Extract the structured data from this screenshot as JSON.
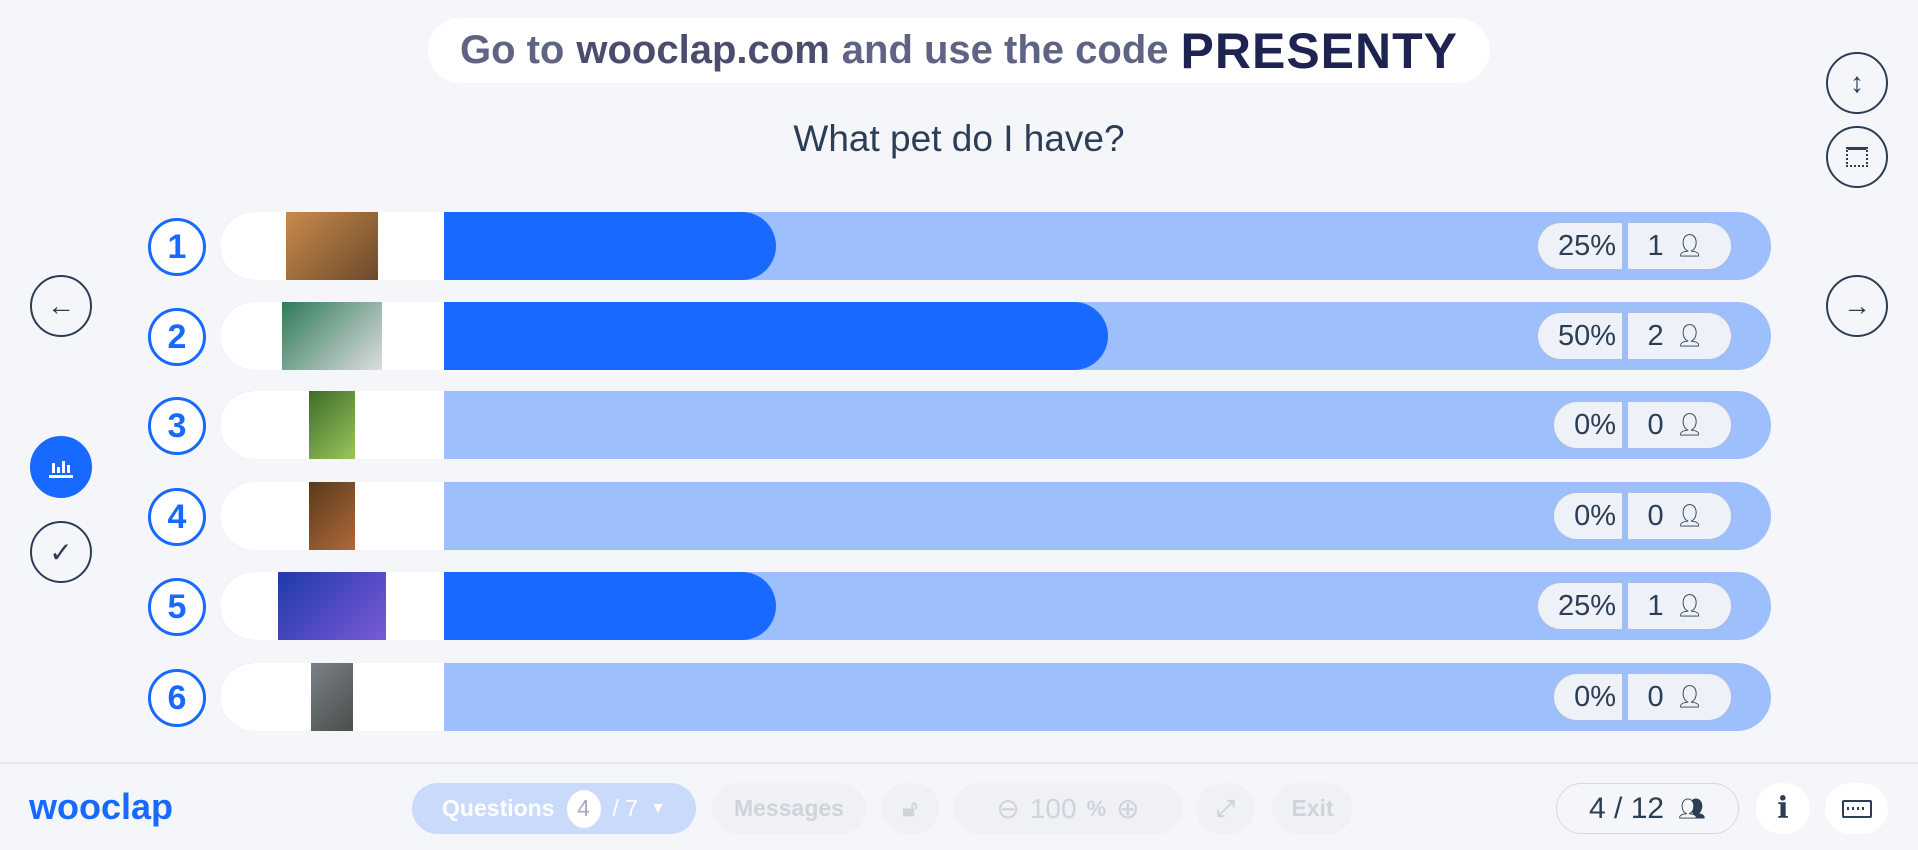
{
  "banner": {
    "prefix": "Go to",
    "site": "wooclap.com",
    "middle": "and use the code",
    "code": "PRESENTY"
  },
  "question": "What pet do I have?",
  "colors": {
    "accent": "#1769ff",
    "track": "#9dbffc",
    "text": "#2b3e55"
  },
  "answers": [
    {
      "number": "1",
      "image": "beagle dog",
      "percent": "25%",
      "value": 25,
      "count": "1"
    },
    {
      "number": "2",
      "image": "cat",
      "percent": "50%",
      "value": 50,
      "count": "2"
    },
    {
      "number": "3",
      "image": "frog",
      "percent": "0%",
      "value": 0,
      "count": "0"
    },
    {
      "number": "4",
      "image": "horse",
      "percent": "0%",
      "value": 0,
      "count": "0"
    },
    {
      "number": "5",
      "image": "fish",
      "percent": "25%",
      "value": 25,
      "count": "1"
    },
    {
      "number": "6",
      "image": "dinosaur",
      "percent": "0%",
      "value": 0,
      "count": "0"
    }
  ],
  "footer": {
    "logo": "wooclap",
    "questions_label": "Questions",
    "current_question": "4",
    "total_questions": "/ 7",
    "messages_label": "Messages",
    "zoom_value": "100",
    "zoom_unit": "%",
    "exit_label": "Exit",
    "participants": "4 / 12"
  }
}
